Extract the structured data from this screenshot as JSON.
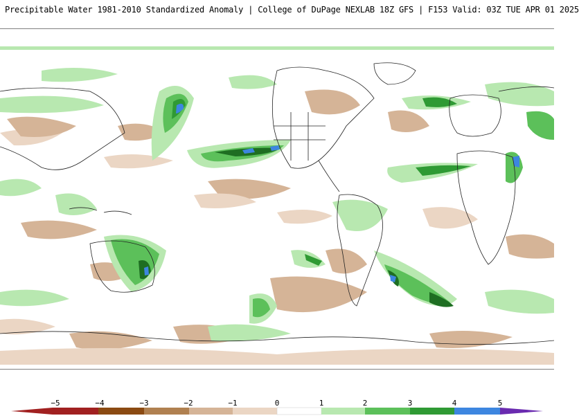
{
  "title": "Precipitable Water 1981-2010 Standardized Anomaly | College of DuPage NEXLAB  18Z GFS | F153 Valid: 03Z TUE APR 01 2025",
  "colors": {
    "neg_strong": "#a12020",
    "neg_dark_brown": "#8b4a12",
    "neg_brown": "#b08050",
    "neg_tan": "#d5b497",
    "neg_light": "#ebd6c4",
    "neutral": "#ffffff",
    "pos_light": "#b8e8b0",
    "pos_med": "#5cc05a",
    "pos_green": "#2f9a34",
    "pos_dark": "#1e6e22",
    "pos_blue": "#3d86e0",
    "pos_purple": "#6a2bb0",
    "coast": "#222222"
  },
  "legend": {
    "ticks": [
      "−5",
      "−4",
      "−3",
      "−2",
      "−1",
      "0",
      "1",
      "2",
      "3",
      "4",
      "5"
    ]
  }
}
